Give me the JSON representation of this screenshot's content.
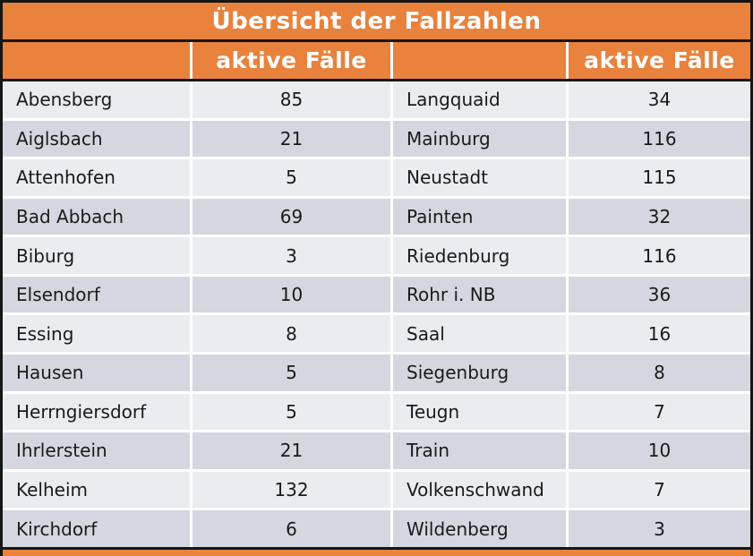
{
  "colors": {
    "accent": "#E8823C",
    "border": "#161616",
    "row_light": "#EAECF0",
    "row_dark": "#D4D7DF",
    "text": "#1A1A1A",
    "header_text": "#FFFFFF"
  },
  "chart_data": {
    "type": "table",
    "title": "Übersicht der Fallzahlen",
    "header": [
      "",
      "aktive Fälle",
      "",
      "aktive Fälle"
    ],
    "rows": [
      [
        "Abensberg",
        "85",
        "Langquaid",
        "34"
      ],
      [
        "Aiglsbach",
        "21",
        "Mainburg",
        "116"
      ],
      [
        "Attenhofen",
        "5",
        "Neustadt",
        "115"
      ],
      [
        "Bad Abbach",
        "69",
        "Painten",
        "32"
      ],
      [
        "Biburg",
        "3",
        "Riedenburg",
        "116"
      ],
      [
        "Elsendorf",
        "10",
        "Rohr i. NB",
        "36"
      ],
      [
        "Essing",
        "8",
        "Saal",
        "16"
      ],
      [
        "Hausen",
        "5",
        "Siegenburg",
        "8"
      ],
      [
        "Herrngiersdorf",
        "5",
        "Teugn",
        "7"
      ],
      [
        "Ihrlerstein",
        "21",
        "Train",
        "10"
      ],
      [
        "Kelheim",
        "132",
        "Volkenschwand",
        "7"
      ],
      [
        "Kirchdorf",
        "6",
        "Wildenberg",
        "3"
      ]
    ]
  }
}
